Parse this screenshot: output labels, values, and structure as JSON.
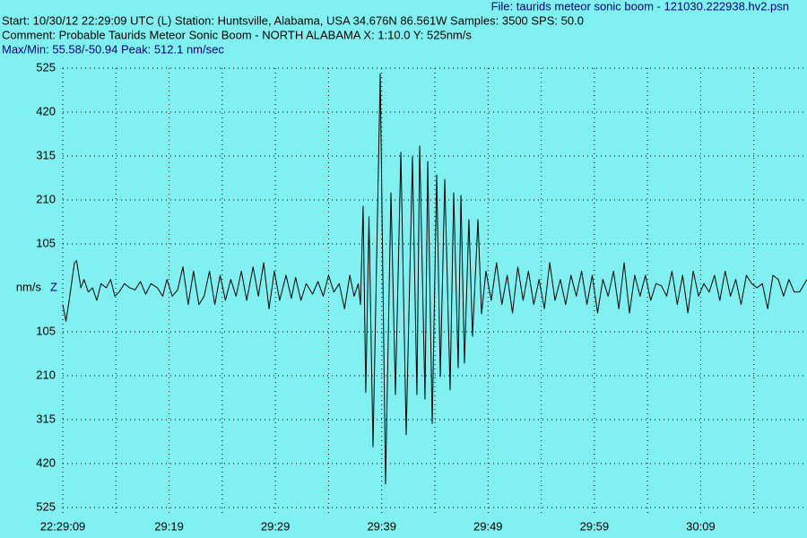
{
  "chart_data": {
    "type": "line",
    "file": "File: taurids meteor sonic boom - 121030.222938.hv2.psn",
    "start": "Start: 10/30/12 22:29:09 UTC (L) Station: Huntsville, Alabama, USA 34.676N 86.561W Samples: 3500  SPS: 50.0",
    "comment": "Comment: Probable Taurids Meteor Sonic Boom - NORTH ALABAMA  X: 1:10.0 Y: 525nm/s",
    "maxmin": "Max/Min: 55.58/-50.94  Peak: 512.1 nm/sec",
    "y_label": "nm/s",
    "background": "#80f0f0",
    "grid": true,
    "xlim": [
      0,
      70
    ],
    "xticks": [
      {
        "value": 0,
        "label": "22:29:09"
      },
      {
        "value": 10,
        "label": "29:19"
      },
      {
        "value": 20,
        "label": "29:29"
      },
      {
        "value": 30,
        "label": "29:39"
      },
      {
        "value": 40,
        "label": "29:49"
      },
      {
        "value": 50,
        "label": "29:59"
      },
      {
        "value": 60,
        "label": "30:09"
      }
    ],
    "xminor": [
      5,
      15,
      25,
      35,
      45,
      55,
      65
    ],
    "ylim": [
      -525,
      525
    ],
    "yticks": [
      525,
      420,
      315,
      210,
      105,
      {
        "value": -105,
        "label": "105"
      },
      {
        "value": -210,
        "label": "210"
      },
      {
        "value": -315,
        "label": "315"
      },
      {
        "value": -420,
        "label": "420"
      },
      {
        "value": -525,
        "label": "525"
      }
    ],
    "x": [
      0,
      0.3,
      0.6,
      1.1,
      1.3,
      1.7,
      2.0,
      2.4,
      2.8,
      3.2,
      3.6,
      4.1,
      4.5,
      4.9,
      5.3,
      5.8,
      6.3,
      6.8,
      7.3,
      7.8,
      8.3,
      8.9,
      9.4,
      9.8,
      10.3,
      10.8,
      11.3,
      11.8,
      12.3,
      12.8,
      13.3,
      13.8,
      14.3,
      14.8,
      15.3,
      15.8,
      16.3,
      16.8,
      17.3,
      17.9,
      18.4,
      18.9,
      19.4,
      19.9,
      20.4,
      21.0,
      21.5,
      21.9,
      22.4,
      22.9,
      23.5,
      24.0,
      24.5,
      25.0,
      25.5,
      26.0,
      26.5,
      27.0,
      27.4,
      27.8,
      28.0,
      28.25,
      28.5,
      28.8,
      29.18,
      29.86,
      30.36,
      30.87,
      31.29,
      31.8,
      32.3,
      32.89,
      33.31,
      33.57,
      34.07,
      34.33,
      34.75,
      35.17,
      35.51,
      35.93,
      36.43,
      36.77,
      37.19,
      37.45,
      37.78,
      38.2,
      38.54,
      39.05,
      39.39,
      39.8,
      40.3,
      40.8,
      41.3,
      41.8,
      42.3,
      42.8,
      43.3,
      43.8,
      44.3,
      44.8,
      45.3,
      45.8,
      46.3,
      46.8,
      47.3,
      47.8,
      48.3,
      48.8,
      49.3,
      49.8,
      50.3,
      50.8,
      51.3,
      51.8,
      52.3,
      52.8,
      53.3,
      53.8,
      54.3,
      54.8,
      55.3,
      55.8,
      56.3,
      56.8,
      57.3,
      57.8,
      58.3,
      58.8,
      59.3,
      59.8,
      60.3,
      60.8,
      61.3,
      61.8,
      62.3,
      62.8,
      63.3,
      63.8,
      64.3,
      64.8,
      65.3,
      65.8,
      66.3,
      66.8,
      67.3,
      67.8,
      68.3,
      68.8,
      69.3,
      70
    ],
    "series": [
      {
        "name": "Z",
        "color": "#000000",
        "values": [
          -40,
          -80,
          -30,
          60,
          65,
          0,
          20,
          -10,
          0,
          -30,
          10,
          0,
          20,
          -20,
          -10,
          10,
          0,
          -5,
          15,
          -15,
          10,
          0,
          -20,
          20,
          -20,
          -5,
          50,
          -40,
          40,
          -40,
          -20,
          40,
          -40,
          30,
          -30,
          20,
          -20,
          40,
          -30,
          50,
          -20,
          60,
          -50,
          40,
          -30,
          30,
          -25,
          25,
          -30,
          10,
          -15,
          15,
          -20,
          30,
          -10,
          10,
          -50,
          30,
          -20,
          10,
          -40,
          195,
          -250,
          170,
          -380,
          512,
          -469,
          227,
          -255,
          324,
          -351,
          313,
          -255,
          339,
          -266,
          302,
          -324,
          270,
          -212,
          259,
          -244,
          227,
          -191,
          221,
          -180,
          163,
          -116,
          163,
          -62,
          40,
          -30,
          60,
          -40,
          30,
          -60,
          50,
          -30,
          40,
          -40,
          20,
          -50,
          60,
          -30,
          20,
          -40,
          30,
          -20,
          40,
          -40,
          30,
          -60,
          20,
          -20,
          40,
          -50,
          60,
          -60,
          30,
          -20,
          30,
          -30,
          10,
          5,
          -20,
          40,
          -40,
          30,
          -60,
          40,
          -20,
          10,
          -10,
          30,
          -30,
          40,
          -20,
          20,
          -40,
          30,
          10,
          0,
          10,
          -50,
          30,
          20,
          -20,
          20,
          -10,
          -10,
          20
        ]
      }
    ]
  }
}
